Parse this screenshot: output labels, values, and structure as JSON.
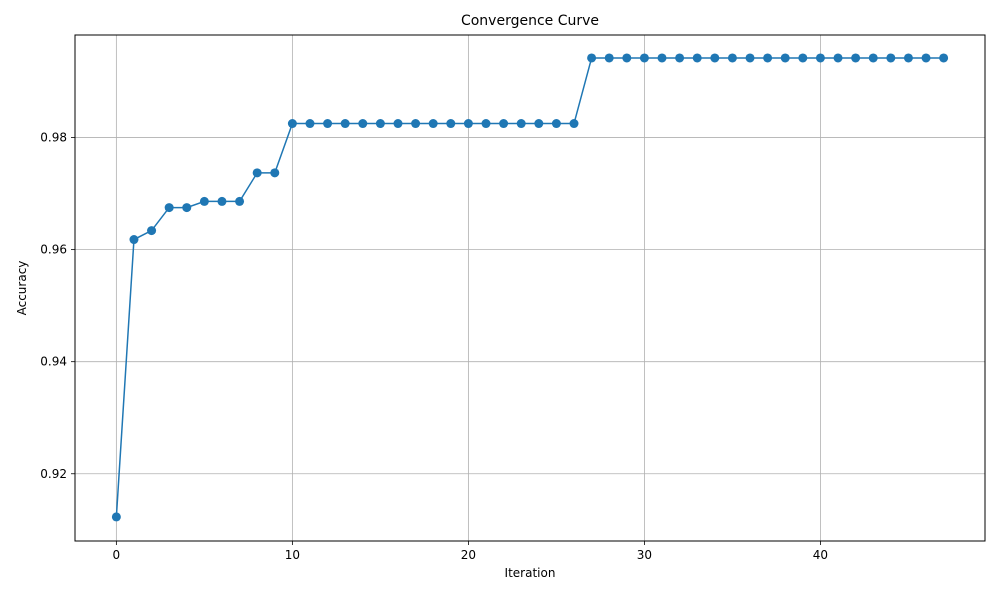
{
  "chart_data": {
    "type": "line",
    "title": "Convergence Curve",
    "xlabel": "Iteration",
    "ylabel": "Accuracy",
    "xlim": [
      -2.35,
      49.35
    ],
    "ylim": [
      0.908,
      0.9983
    ],
    "xticks": [
      0,
      10,
      20,
      30,
      40
    ],
    "yticks": [
      0.92,
      0.94,
      0.96,
      0.98
    ],
    "ytick_labels": [
      "0.92",
      "0.94",
      "0.96",
      "0.98"
    ],
    "grid": true,
    "line_color": "#1f77b4",
    "x": [
      0,
      1,
      2,
      3,
      4,
      5,
      6,
      7,
      8,
      9,
      10,
      11,
      12,
      13,
      14,
      15,
      16,
      17,
      18,
      19,
      20,
      21,
      22,
      23,
      24,
      25,
      26,
      27,
      28,
      29,
      30,
      31,
      32,
      33,
      34,
      35,
      36,
      37,
      38,
      39,
      40,
      41,
      42,
      43,
      44,
      45,
      46,
      47
    ],
    "y": [
      0.9123,
      0.9618,
      0.9634,
      0.9675,
      0.9675,
      0.9686,
      0.9686,
      0.9686,
      0.9737,
      0.9737,
      0.9825,
      0.9825,
      0.9825,
      0.9825,
      0.9825,
      0.9825,
      0.9825,
      0.9825,
      0.9825,
      0.9825,
      0.9825,
      0.9825,
      0.9825,
      0.9825,
      0.9825,
      0.9825,
      0.9825,
      0.9942,
      0.9942,
      0.9942,
      0.9942,
      0.9942,
      0.9942,
      0.9942,
      0.9942,
      0.9942,
      0.9942,
      0.9942,
      0.9942,
      0.9942,
      0.9942,
      0.9942,
      0.9942,
      0.9942,
      0.9942,
      0.9942,
      0.9942,
      0.9942
    ]
  }
}
